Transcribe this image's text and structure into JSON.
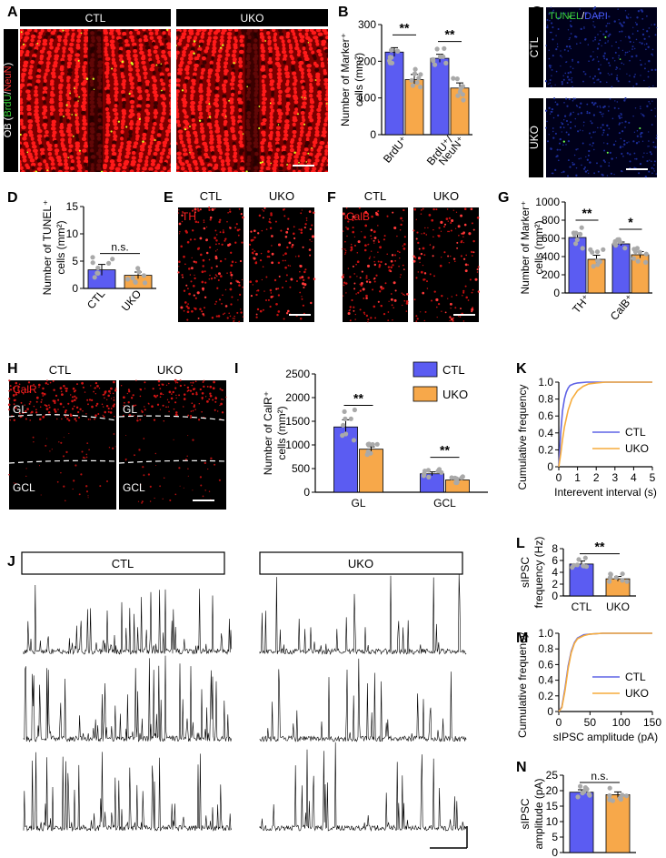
{
  "panels": {
    "A": {
      "letter": "A",
      "headers": [
        "CTL",
        "UKO"
      ],
      "side_label": {
        "prefix": "OB (",
        "green": "BrdU",
        "slash": "/",
        "red": "NeuN",
        "suffix": ")"
      }
    },
    "B": {
      "letter": "B"
    },
    "C": {
      "letter": "C",
      "stain": {
        "green": "TUNEL",
        "slash": "/",
        "blue": "DAPI"
      },
      "rows": [
        "CTL",
        "UKO"
      ]
    },
    "D": {
      "letter": "D"
    },
    "E": {
      "letter": "E",
      "headers": [
        "CTL",
        "UKO"
      ],
      "stain": "TH"
    },
    "F": {
      "letter": "F",
      "headers": [
        "CTL",
        "UKO"
      ],
      "stain": "CalB"
    },
    "G": {
      "letter": "G"
    },
    "H": {
      "letter": "H",
      "headers": [
        "CTL",
        "UKO"
      ],
      "stain": "CalR",
      "layers": [
        "GL",
        "GCL"
      ]
    },
    "I": {
      "letter": "I"
    },
    "J": {
      "letter": "J",
      "headers": [
        "CTL",
        "UKO"
      ]
    },
    "K": {
      "letter": "K"
    },
    "L": {
      "letter": "L"
    },
    "M": {
      "letter": "M"
    },
    "N": {
      "letter": "N"
    }
  },
  "colors": {
    "ctl": "#5b5cf2",
    "uko": "#f7a84a",
    "ctl_line": "#5f63e6",
    "uko_line": "#f6ac3c",
    "dot": "#a9a9a9"
  },
  "chart_data": [
    {
      "id": "B",
      "type": "bar",
      "ylabel": [
        "Number of Marker⁺",
        "cells (mm²)"
      ],
      "ylim": [
        0,
        300
      ],
      "yticks": [
        0,
        100,
        200,
        300
      ],
      "categories": [
        "BrdU⁺",
        "BrdU⁺/ NeuN⁺"
      ],
      "series": [
        {
          "name": "CTL",
          "values": [
            225,
            208
          ],
          "errors": [
            12,
            11
          ]
        },
        {
          "name": "UKO",
          "values": [
            150,
            127
          ],
          "errors": [
            14,
            14
          ]
        }
      ],
      "annotations": [
        "**",
        "**"
      ]
    },
    {
      "id": "D",
      "type": "bar",
      "ylabel": [
        "Number of TUNEL⁺",
        "cells (mm²)"
      ],
      "ylim": [
        0,
        15
      ],
      "yticks": [
        0,
        5,
        10,
        15
      ],
      "categories": [
        "CTL",
        "UKO"
      ],
      "values": [
        3.4,
        2.4
      ],
      "errors": [
        1.0,
        0.6
      ],
      "annotation": "n.s."
    },
    {
      "id": "G",
      "type": "bar",
      "ylabel": [
        "Number of Marker⁺",
        "cells (mm²)"
      ],
      "ylim": [
        0,
        1000
      ],
      "yticks": [
        0,
        200,
        400,
        600,
        800,
        1000
      ],
      "categories": [
        "TH⁺",
        "CalB⁺"
      ],
      "series": [
        {
          "name": "CTL",
          "values": [
            610,
            540
          ],
          "errors": [
            50,
            20
          ]
        },
        {
          "name": "UKO",
          "values": [
            370,
            420
          ],
          "errors": [
            45,
            35
          ]
        }
      ],
      "annotations": [
        "**",
        "*"
      ]
    },
    {
      "id": "I",
      "type": "bar",
      "ylabel": [
        "Number of CalR⁺",
        "cells (mm²)"
      ],
      "ylim": [
        0,
        2500
      ],
      "yticks": [
        0,
        500,
        1000,
        1500,
        2000,
        2500
      ],
      "categories": [
        "GL",
        "GCL"
      ],
      "series": [
        {
          "name": "CTL",
          "values": [
            1380,
            390
          ],
          "errors": [
            150,
            40
          ]
        },
        {
          "name": "UKO",
          "values": [
            910,
            260
          ],
          "errors": [
            50,
            30
          ]
        }
      ],
      "annotations": [
        "**",
        "**"
      ],
      "legend": [
        "CTL",
        "UKO"
      ]
    },
    {
      "id": "K",
      "type": "line",
      "xlabel": "Interevent interval (s)",
      "ylabel": "Cumulative frequency",
      "xlim": [
        0,
        5
      ],
      "ylim": [
        0,
        1.0
      ],
      "xticks": [
        0,
        1,
        2,
        3,
        4,
        5
      ],
      "yticks": [
        0,
        0.2,
        0.4,
        0.6,
        0.8,
        1.0
      ],
      "ytick_labels": [
        "0",
        "0.2",
        "0.4",
        "0.6",
        "0.8",
        "1.0"
      ],
      "series": [
        {
          "name": "CTL",
          "x": [
            0,
            0.1,
            0.2,
            0.3,
            0.4,
            0.5,
            0.6,
            0.8,
            1.0,
            1.5,
            2.0,
            5.0
          ],
          "y": [
            0,
            0.4,
            0.66,
            0.8,
            0.88,
            0.93,
            0.96,
            0.98,
            0.99,
            1.0,
            1.0,
            1.0
          ]
        },
        {
          "name": "UKO",
          "x": [
            0,
            0.1,
            0.2,
            0.3,
            0.5,
            0.7,
            1.0,
            1.3,
            1.6,
            2.0,
            2.5,
            5.0
          ],
          "y": [
            0,
            0.15,
            0.32,
            0.47,
            0.67,
            0.8,
            0.9,
            0.95,
            0.98,
            0.99,
            1.0,
            1.0
          ]
        }
      ],
      "legend": [
        "CTL",
        "UKO"
      ]
    },
    {
      "id": "L",
      "type": "bar",
      "ylabel": [
        "sIPSC",
        "frequency (Hz)"
      ],
      "ylim": [
        0,
        8
      ],
      "yticks": [
        0,
        2,
        4,
        6,
        8
      ],
      "categories": [
        "CTL",
        "UKO"
      ],
      "values": [
        5.4,
        2.9
      ],
      "errors": [
        0.5,
        0.4
      ],
      "annotation": "**"
    },
    {
      "id": "M",
      "type": "line",
      "xlabel": "sIPSC amplitude (pA)",
      "ylabel": "Cumulative frequency",
      "xlim": [
        0,
        150
      ],
      "ylim": [
        0,
        1.0
      ],
      "xticks": [
        0,
        50,
        100,
        150
      ],
      "yticks": [
        0,
        0.2,
        0.4,
        0.6,
        0.8,
        1.0
      ],
      "ytick_labels": [
        "0",
        "0.2",
        "0.4",
        "0.6",
        "0.8",
        "1.0"
      ],
      "series": [
        {
          "name": "CTL",
          "x": [
            0,
            5,
            10,
            15,
            20,
            25,
            30,
            40,
            50,
            70,
            100,
            150
          ],
          "y": [
            0,
            0.06,
            0.3,
            0.58,
            0.77,
            0.88,
            0.94,
            0.98,
            0.99,
            1.0,
            1.0,
            1.0
          ]
        },
        {
          "name": "UKO",
          "x": [
            0,
            5,
            10,
            15,
            20,
            25,
            30,
            40,
            50,
            70,
            100,
            150
          ],
          "y": [
            0,
            0.05,
            0.27,
            0.55,
            0.75,
            0.87,
            0.93,
            0.97,
            0.99,
            1.0,
            1.0,
            1.0
          ]
        }
      ],
      "legend": [
        "CTL",
        "UKO"
      ]
    },
    {
      "id": "N",
      "type": "bar",
      "ylabel": [
        "sIPSC",
        "amplitude (pA)"
      ],
      "ylim": [
        0,
        25
      ],
      "yticks": [
        0,
        5,
        10,
        15,
        20,
        25
      ],
      "categories": [
        "CTL",
        "UKO"
      ],
      "values": [
        19.5,
        18.7
      ],
      "errors": [
        0.8,
        0.9
      ],
      "annotation": "n.s."
    }
  ]
}
